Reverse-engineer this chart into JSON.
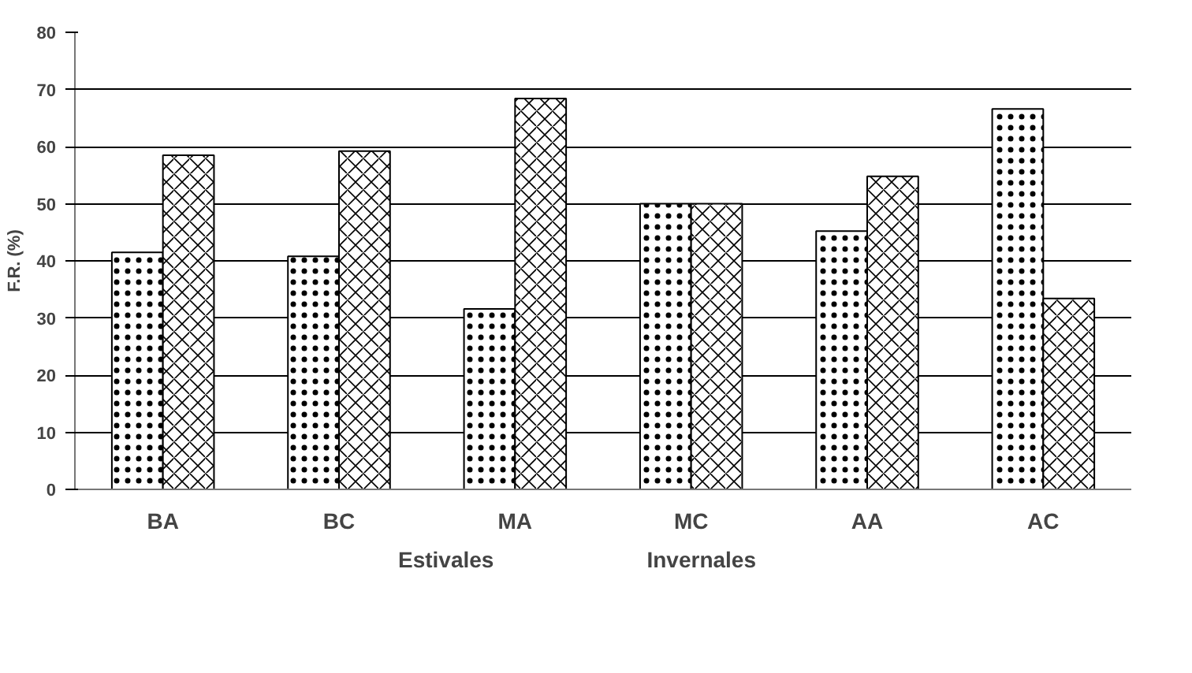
{
  "chart_data": {
    "type": "bar",
    "ylabel": "F.R. (%)",
    "categories": [
      "BA",
      "BC",
      "MA",
      "MC",
      "AA",
      "AC"
    ],
    "series": [
      {
        "name": "Estivales",
        "color": "#000000",
        "values": [
          41.5,
          40.8,
          31.6,
          50,
          45.2,
          66.6
        ]
      },
      {
        "name": "Invernales",
        "color": "#000000",
        "values": [
          58.5,
          59.2,
          68.4,
          50,
          54.8,
          33.4
        ]
      }
    ],
    "ylim": [
      0,
      80
    ],
    "yticks": [
      0,
      10,
      20,
      30,
      40,
      50,
      60,
      70,
      80
    ],
    "grid": "y",
    "legend": "bottom"
  }
}
